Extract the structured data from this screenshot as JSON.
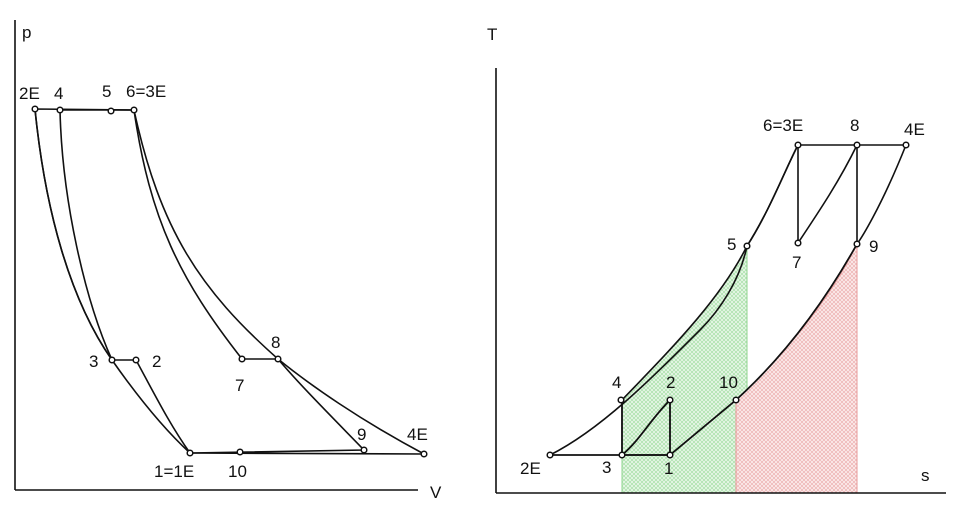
{
  "pv_diagram": {
    "y_axis_label": "p",
    "x_axis_label": "V",
    "points": {
      "p2E": "2E",
      "p4": "4",
      "p5": "5",
      "p6": "6=3E",
      "p3": "3",
      "p2": "2",
      "p7": "7",
      "p8": "8",
      "p1": "1=1E",
      "p10": "10",
      "p9": "9",
      "p4E": "4E"
    }
  },
  "ts_diagram": {
    "y_axis_label": "T",
    "x_axis_label": "s",
    "points": {
      "p2E": "2E",
      "p3": "3",
      "p1": "1",
      "p4": "4",
      "p2": "2",
      "p10": "10",
      "p5": "5",
      "p6": "6=3E",
      "p8": "8",
      "p4E": "4E",
      "p7": "7",
      "p9": "9"
    }
  },
  "colors": {
    "cycle_fill": "#ffff00",
    "loss_fill": "#f9c56a",
    "heat_in_hatch": "#7fd67f",
    "heat_out_hatch": "#e88a8a"
  }
}
